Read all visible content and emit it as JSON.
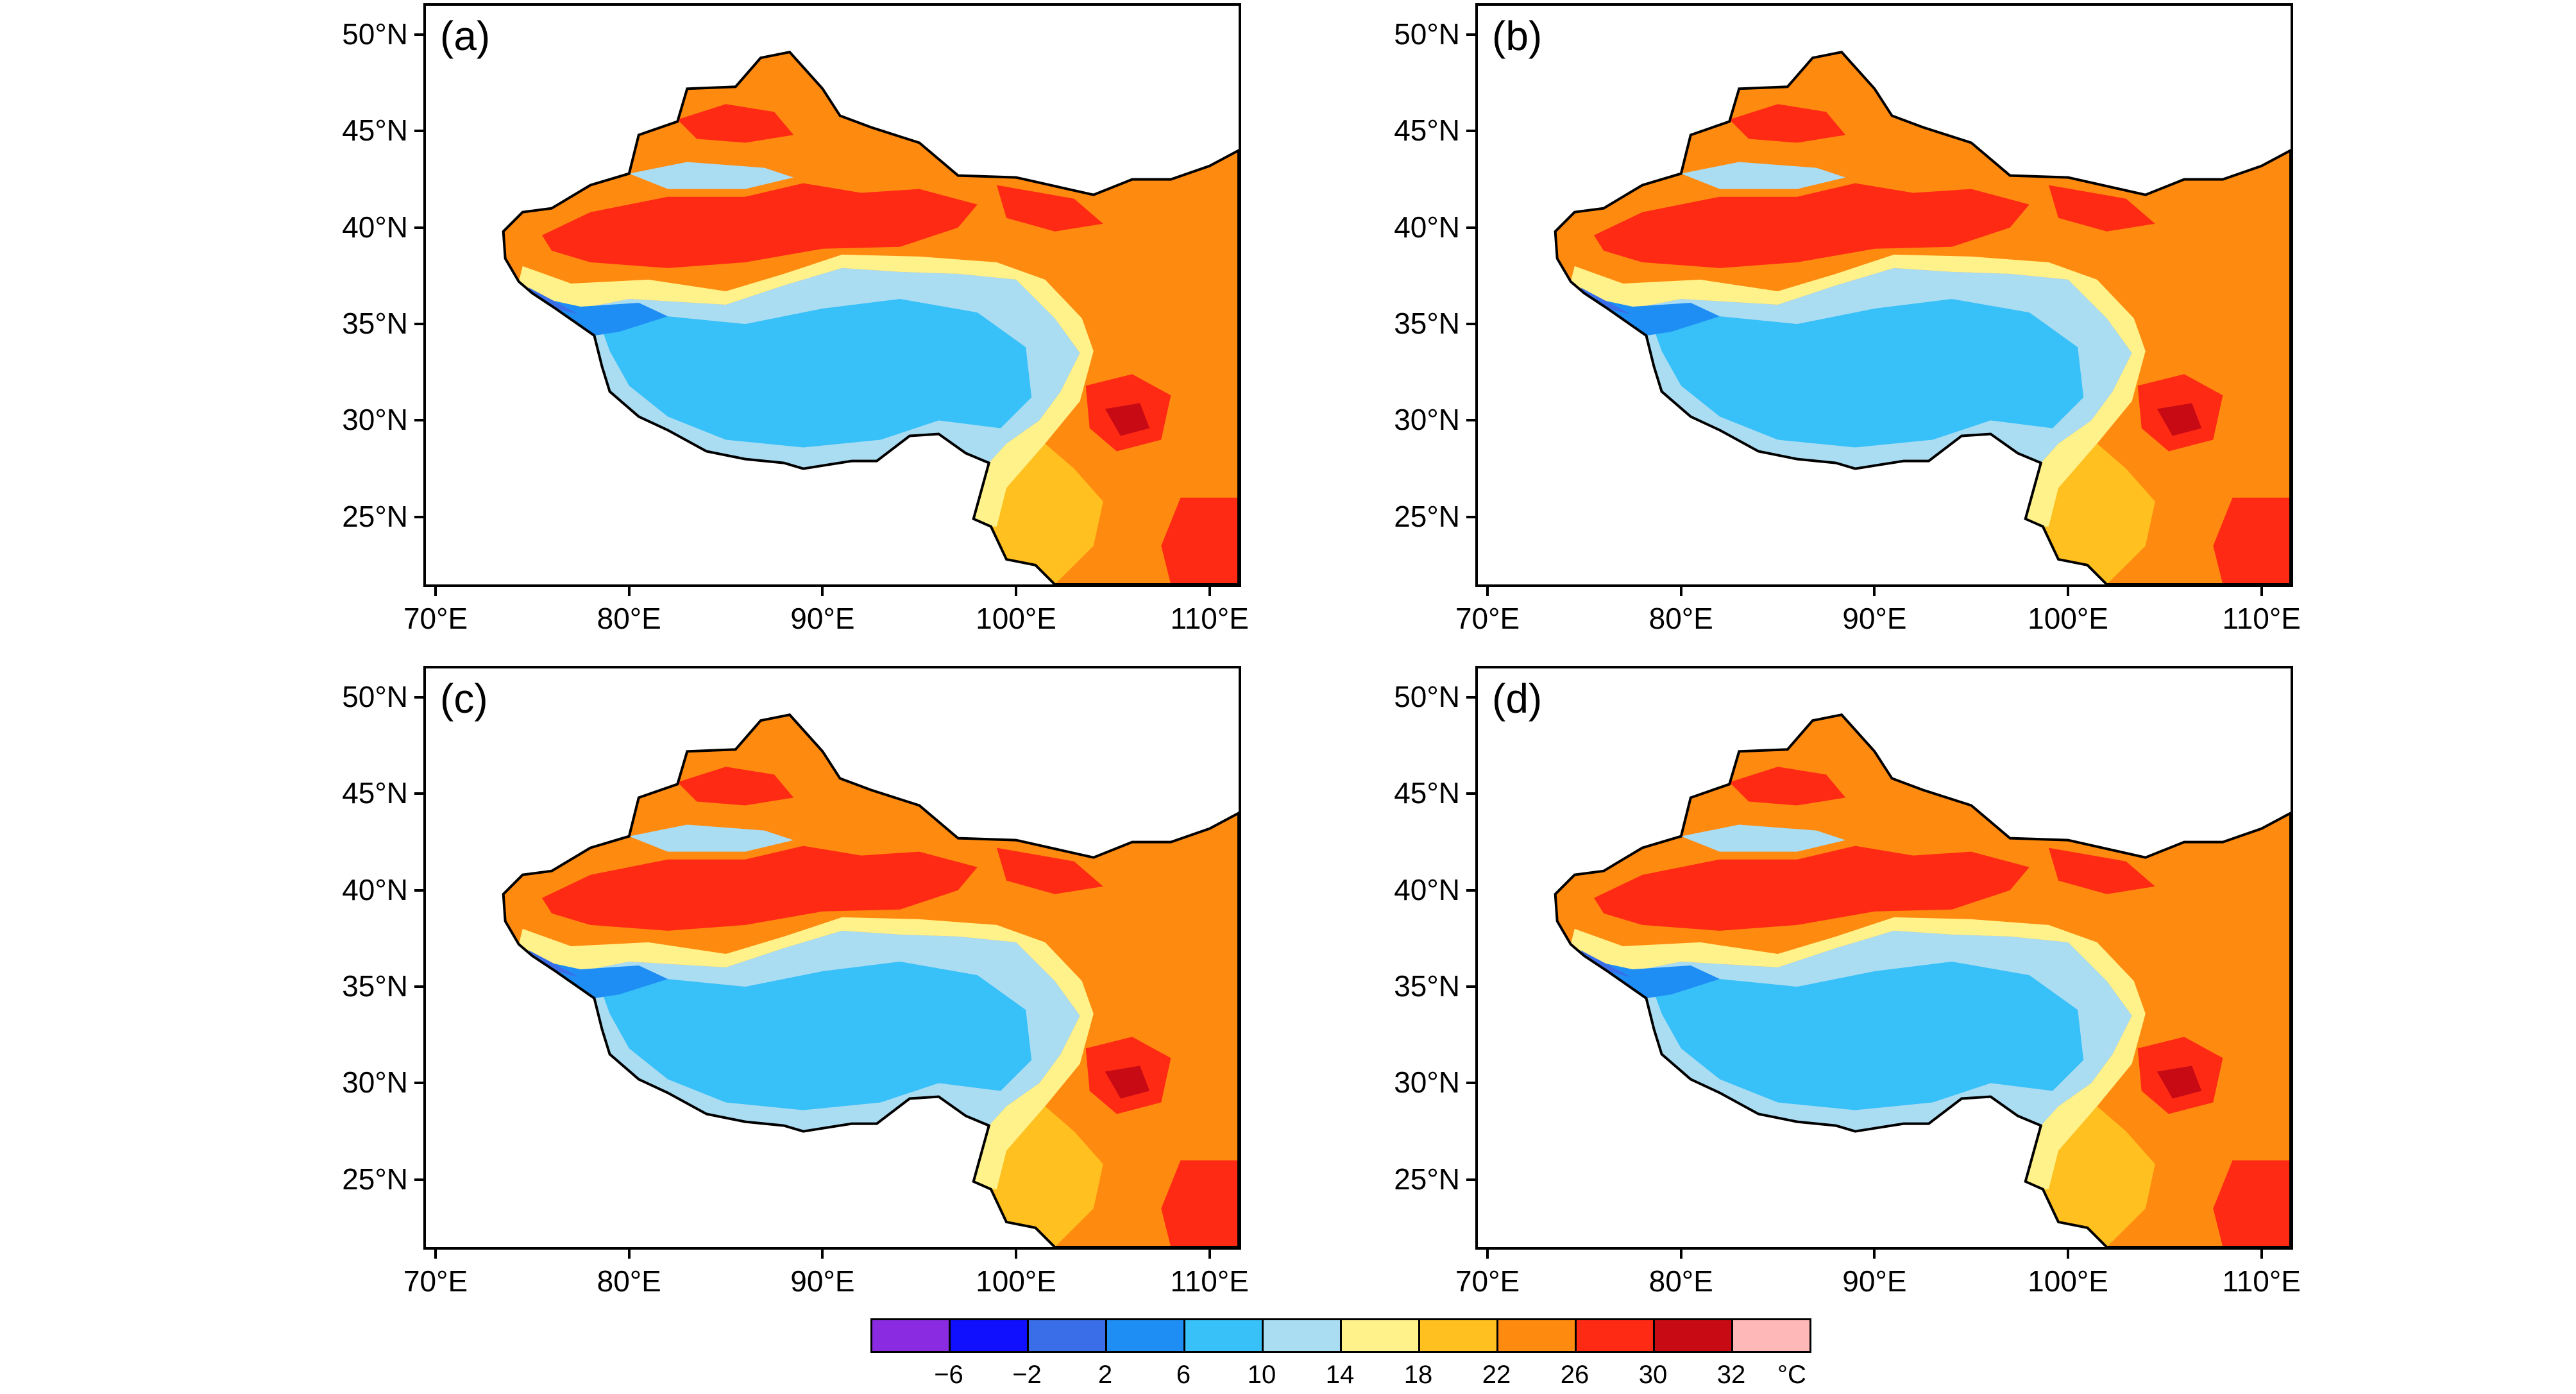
{
  "panels": [
    {
      "label": "(a)"
    },
    {
      "label": "(b)"
    },
    {
      "label": "(c)"
    },
    {
      "label": "(d)"
    }
  ],
  "lat_ticks": [
    "50°N",
    "45°N",
    "40°N",
    "35°N",
    "30°N",
    "25°N"
  ],
  "lon_ticks": [
    "70°E",
    "80°E",
    "90°E",
    "100°E",
    "110°E"
  ],
  "colorbar": {
    "labels": [
      "−6",
      "−2",
      "2",
      "6",
      "10",
      "14",
      "18",
      "22",
      "26",
      "30",
      "32"
    ],
    "unit": "°C",
    "colors": [
      "#8a2be2",
      "#1010ff",
      "#3a6ee8",
      "#1e8ef5",
      "#38c0f8",
      "#aadcf2",
      "#fff28a",
      "#ffc020",
      "#ff8a10",
      "#ff2a14",
      "#c80a14",
      "#ffb8b8"
    ]
  },
  "map": {
    "lon_range": [
      69.5,
      111.5
    ],
    "lat_range": [
      21.5,
      51.5
    ],
    "palette": {
      "tibet": "#38c0f8",
      "tibet_rim": "#aadcf2",
      "cold": "#1e8ef5",
      "coldest": "#3a6ee8",
      "basin": "#ff2a14",
      "warm": "#ff8a10",
      "mild": "#ffc020",
      "cool": "#fff28a",
      "hot_core": "#c80a14"
    }
  }
}
